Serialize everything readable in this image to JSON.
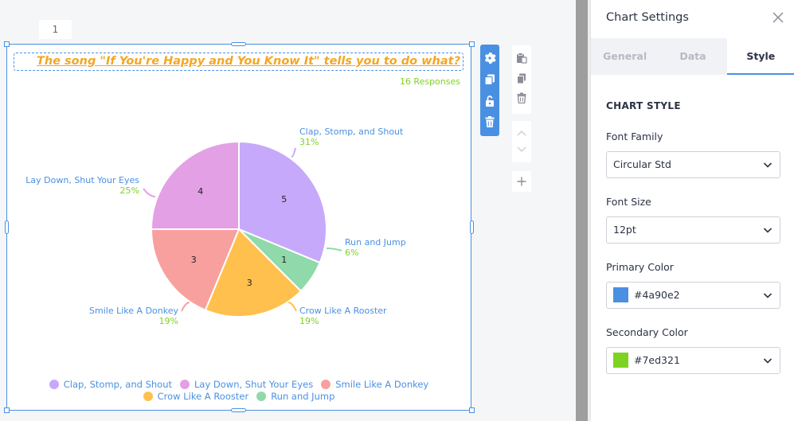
{
  "page": {
    "tab_number": "1"
  },
  "question": {
    "title": "The song \"If You're Happy and You Know It\" tells you to do what?",
    "responses": "16 Responses"
  },
  "chart_data": {
    "type": "pie",
    "title": "The song \"If You're Happy and You Know It\" tells you to do what?",
    "slices": [
      {
        "label": "Clap, Stomp, and Shout",
        "value": 5,
        "percent": "31%",
        "color": "#c6a9fb"
      },
      {
        "label": "Run and Jump",
        "value": 1,
        "percent": "6%",
        "color": "#90d9aa"
      },
      {
        "label": "Crow Like A Rooster",
        "value": 3,
        "percent": "19%",
        "color": "#ffc04e"
      },
      {
        "label": "Smile Like A Donkey",
        "value": 3,
        "percent": "19%",
        "color": "#f8a09e"
      },
      {
        "label": "Lay Down, Shut Your Eyes",
        "value": 4,
        "percent": "25%",
        "color": "#e3a0e4"
      }
    ],
    "legend": {
      "placement": "bottom",
      "rows": [
        [
          "Clap, Stomp, and Shout",
          "Lay Down, Shut Your Eyes",
          "Smile Like A Donkey"
        ],
        [
          "Crow Like A Rooster",
          "Run and Jump"
        ]
      ]
    },
    "label_color": "#4a90e2",
    "percent_color": "#7ed321"
  },
  "toolbar": {
    "icons": [
      "gear-icon",
      "duplicate-icon",
      "unlock-icon",
      "trash-icon"
    ]
  },
  "sidetools": {
    "icons": [
      "paste-icon",
      "copy-icon",
      "trash-icon",
      "arrow-up-icon",
      "arrow-down-icon",
      "plus-icon"
    ]
  },
  "panel": {
    "title": "Chart Settings",
    "tabs": [
      "General",
      "Data",
      "Style"
    ],
    "active_tab": "Style",
    "section": "CHART STYLE",
    "font_family": {
      "label": "Font Family",
      "value": "Circular Std"
    },
    "font_size": {
      "label": "Font Size",
      "value": "12pt"
    },
    "primary_color": {
      "label": "Primary Color",
      "value": "#4a90e2"
    },
    "secondary_color": {
      "label": "Secondary Color",
      "value": "#7ed321"
    }
  }
}
